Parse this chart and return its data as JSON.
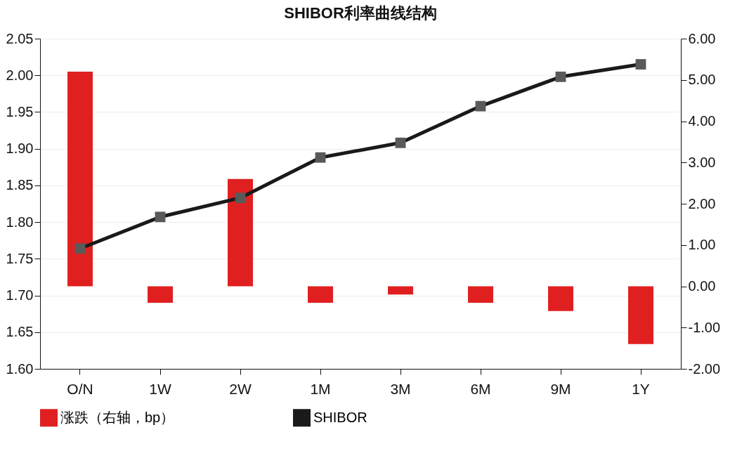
{
  "chart_data": {
    "type": "bar",
    "title": "SHIBOR利率曲线结构",
    "categories": [
      "O/N",
      "1W",
      "2W",
      "1M",
      "3M",
      "6M",
      "9M",
      "1Y"
    ],
    "series": [
      {
        "name": "涨跌（右轴，bp）",
        "axis": "y2",
        "color": "#e02020",
        "values": [
          5.2,
          -0.4,
          2.6,
          -0.4,
          -0.2,
          -0.4,
          -0.6,
          -1.4
        ]
      },
      {
        "name": "SHIBOR",
        "type": "line",
        "color": "#1a1a1a",
        "marker": "square",
        "values": [
          1.764,
          1.807,
          1.833,
          1.888,
          1.908,
          1.958,
          1.998,
          2.015
        ]
      }
    ],
    "ylim": [
      1.6,
      2.05
    ],
    "yticks": [
      {
        "value": 1.6,
        "label": "1.60"
      },
      {
        "value": 1.65,
        "label": "1.65"
      },
      {
        "value": 1.7,
        "label": "1.70"
      },
      {
        "value": 1.75,
        "label": "1.75"
      },
      {
        "value": 1.8,
        "label": "1.80"
      },
      {
        "value": 1.85,
        "label": "1.85"
      },
      {
        "value": 1.9,
        "label": "1.90"
      },
      {
        "value": 1.95,
        "label": "1.95"
      },
      {
        "value": 2.0,
        "label": "2.00"
      },
      {
        "value": 2.05,
        "label": "2.05"
      }
    ],
    "y2lim": [
      -2,
      6
    ],
    "y2ticks": [
      {
        "value": -2,
        "label": "-2.00"
      },
      {
        "value": -1,
        "label": "-1.00"
      },
      {
        "value": 0,
        "label": "0.00"
      },
      {
        "value": 1,
        "label": "1.00"
      },
      {
        "value": 2,
        "label": "2.00"
      },
      {
        "value": 3,
        "label": "3.00"
      },
      {
        "value": 4,
        "label": "4.00"
      },
      {
        "value": 5,
        "label": "5.00"
      },
      {
        "value": 6,
        "label": "6.00"
      }
    ],
    "grid": "y",
    "legend": "bottom"
  }
}
